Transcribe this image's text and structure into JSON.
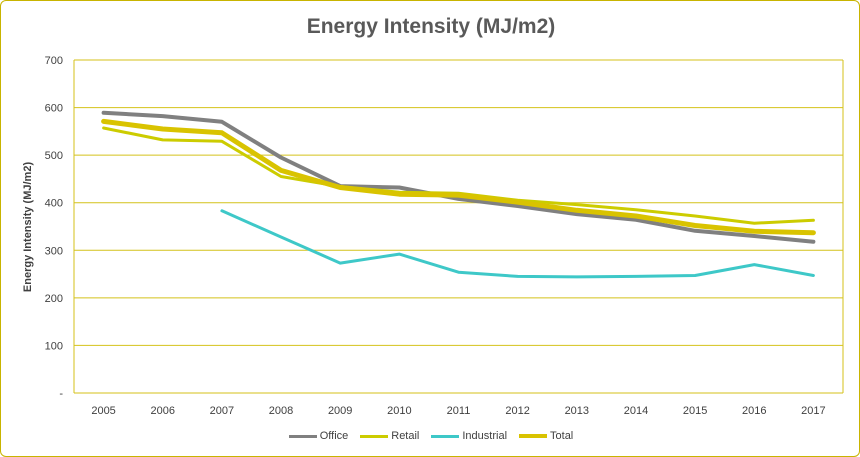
{
  "chart_data": {
    "type": "line",
    "title": "Energy Intensity (MJ/m2)",
    "xlabel": "",
    "ylabel": "Energy Intensity (MJ/m2)",
    "ylim": [
      0,
      700
    ],
    "yticks": [
      0,
      100,
      200,
      300,
      400,
      500,
      600,
      700
    ],
    "ytick_labels": [
      "-",
      "100",
      "200",
      "300",
      "400",
      "500",
      "600",
      "700"
    ],
    "categories": [
      "2005",
      "2006",
      "2007",
      "2008",
      "2009",
      "2010",
      "2011",
      "2012",
      "2013",
      "2014",
      "2015",
      "2016",
      "2017"
    ],
    "series": [
      {
        "name": "Office",
        "color": "#808080",
        "values": [
          589,
          582,
          570,
          495,
          435,
          432,
          408,
          393,
          376,
          364,
          341,
          330,
          318
        ]
      },
      {
        "name": "Retail",
        "color": "#cccc00",
        "values": [
          557,
          532,
          529,
          455,
          434,
          422,
          420,
          405,
          396,
          385,
          372,
          357,
          363
        ]
      },
      {
        "name": "Industrial",
        "color": "#3ec8c8",
        "values": [
          null,
          null,
          383,
          328,
          273,
          292,
          254,
          245,
          244,
          245,
          247,
          270,
          247
        ]
      },
      {
        "name": "Total",
        "color": "#d9c300",
        "values": [
          571,
          555,
          547,
          468,
          432,
          418,
          416,
          401,
          384,
          372,
          352,
          340,
          337
        ]
      }
    ],
    "legend_position": "bottom-center",
    "grid": true
  }
}
